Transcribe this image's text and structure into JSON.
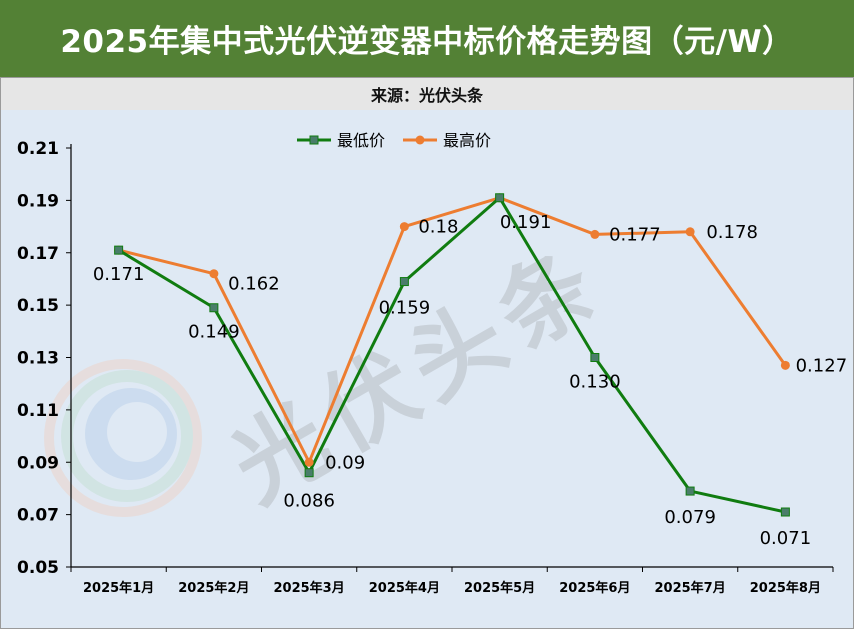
{
  "header": {
    "title": "2025年集中式光伏逆变器中标价格走势图（元/W）",
    "source": "来源：光伏头条"
  },
  "watermark": {
    "text": "光伏头条"
  },
  "colors": {
    "banner": "#538135",
    "low": "#107c10",
    "high": "#ed7d31",
    "background": "#dfe9f4"
  },
  "chart_data": {
    "type": "line",
    "title": "2025年集中式光伏逆变器中标价格走势图（元/W）",
    "categories": [
      "2025年1月",
      "2025年2月",
      "2025年3月",
      "2025年4月",
      "2025年5月",
      "2025年6月",
      "2025年7月",
      "2025年8月"
    ],
    "series": [
      {
        "name": "最低价",
        "values": [
          0.171,
          0.149,
          0.086,
          0.159,
          0.191,
          0.13,
          0.079,
          0.071
        ],
        "labels": [
          "0.171",
          "0.149",
          "0.086",
          "0.159",
          "0.191",
          "0.130",
          "0.079",
          "0.071"
        ],
        "color": "#107c10"
      },
      {
        "name": "最高价",
        "values": [
          0.171,
          0.162,
          0.09,
          0.18,
          0.191,
          0.177,
          0.178,
          0.127
        ],
        "labels": [
          "",
          "0.162",
          "0.09",
          "0.18",
          "",
          "0.177",
          "0.178",
          "0.127"
        ],
        "color": "#ed7d31"
      }
    ],
    "yticks": [
      "0.05",
      "0.07",
      "0.09",
      "0.11",
      "0.13",
      "0.15",
      "0.17",
      "0.19",
      "0.21"
    ],
    "ylim": [
      0.05,
      0.21
    ],
    "legend": "top",
    "grid": false
  }
}
